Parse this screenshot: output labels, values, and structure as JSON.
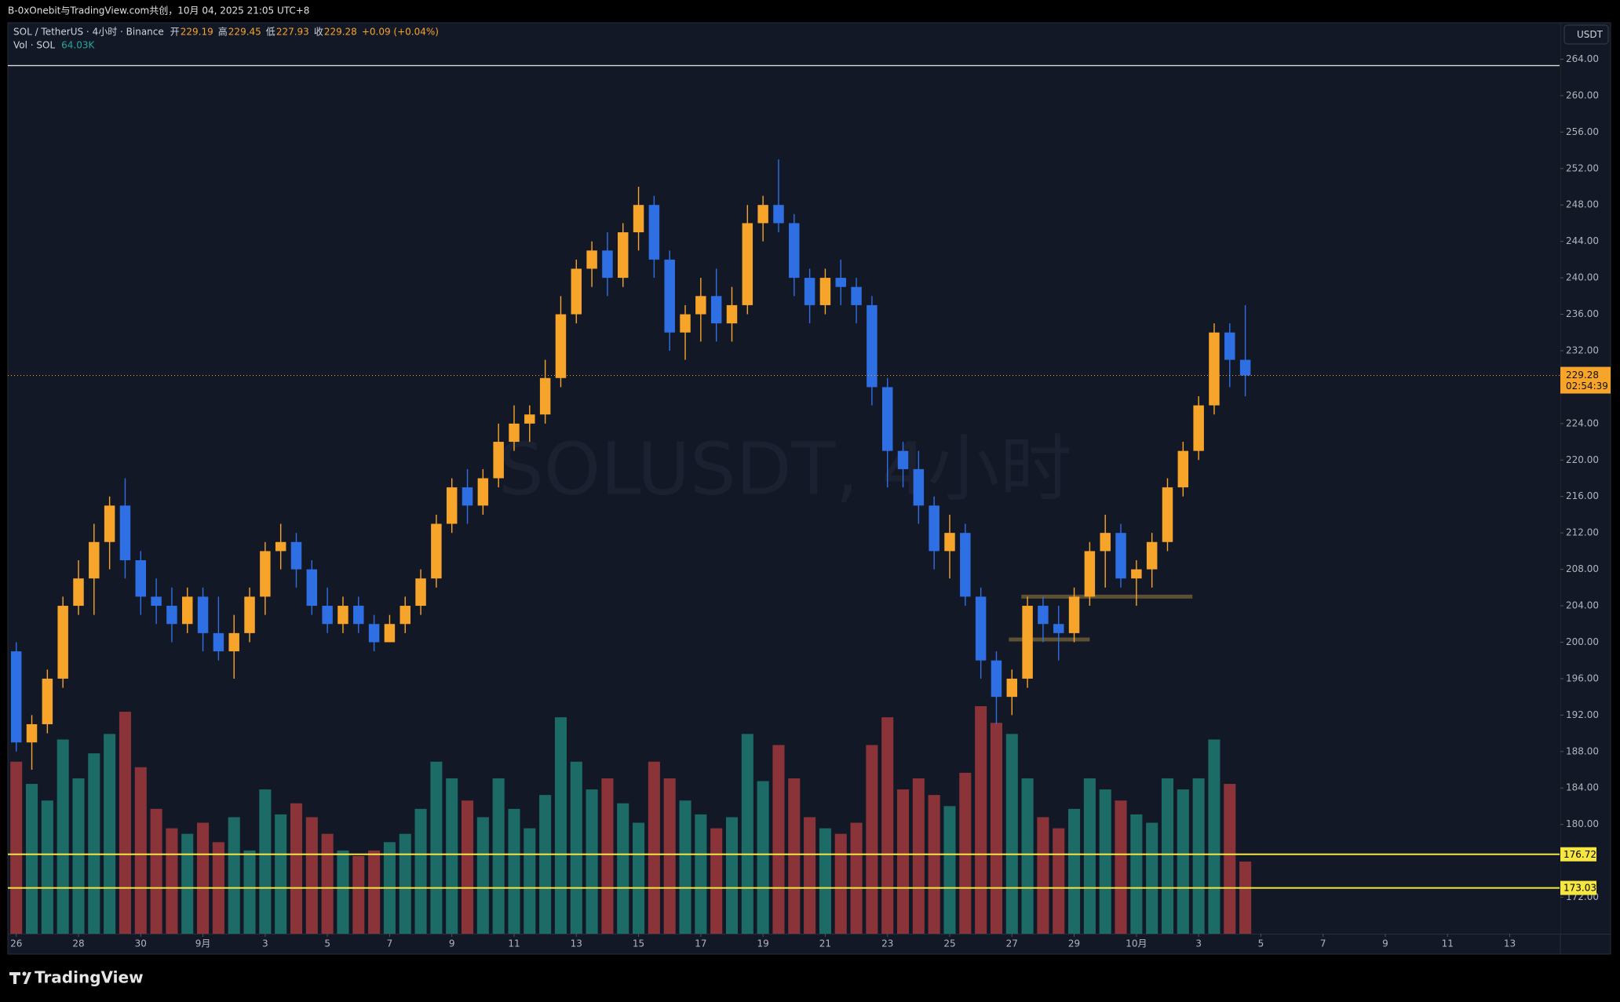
{
  "header": {
    "attribution": "B-0xOnebit与TradingView.com共创，10月 04, 2025 21:05 UTC+8"
  },
  "footer": {
    "brand": "TradingView"
  },
  "chart_data": {
    "type": "candlestick",
    "title": "SOL / TetherUS · 4小时 · Binance",
    "watermark": "SOLUSDT, 4小时",
    "legend": [
      {
        "label": "开",
        "value": 229.19
      },
      {
        "label": "高",
        "value": 229.45
      },
      {
        "label": "低",
        "value": 227.93
      },
      {
        "label": "收",
        "value": 229.28
      }
    ],
    "change": "+0.09 (+0.04%)",
    "volume_legend": {
      "label": "Vol · SOL",
      "value": 64.03,
      "value_label": "64.03K"
    },
    "currency": "USDT",
    "last_price": {
      "value": 229.28,
      "countdown": "02:54:39",
      "color": "#f7a42b"
    },
    "up_color": "#f7a42b",
    "down_color": "#2f6fe4",
    "volume_up_color": "#1d6b67",
    "volume_down_color": "#8a3439",
    "grid": false,
    "xlim": [
      -0.27,
      49.6
    ],
    "ylim": [
      168,
      268
    ],
    "xticks": [
      {
        "value": 0,
        "label": "26"
      },
      {
        "value": 2,
        "label": "28"
      },
      {
        "value": 4,
        "label": "30"
      },
      {
        "value": 6,
        "label": "9月"
      },
      {
        "value": 8,
        "label": "3"
      },
      {
        "value": 10,
        "label": "5"
      },
      {
        "value": 12,
        "label": "7"
      },
      {
        "value": 14,
        "label": "9"
      },
      {
        "value": 16,
        "label": "11"
      },
      {
        "value": 18,
        "label": "13"
      },
      {
        "value": 20,
        "label": "15"
      },
      {
        "value": 22,
        "label": "17"
      },
      {
        "value": 24,
        "label": "19"
      },
      {
        "value": 26,
        "label": "21"
      },
      {
        "value": 28,
        "label": "23"
      },
      {
        "value": 30,
        "label": "25"
      },
      {
        "value": 32,
        "label": "27"
      },
      {
        "value": 34,
        "label": "29"
      },
      {
        "value": 36,
        "label": "10月"
      },
      {
        "value": 38,
        "label": "3"
      },
      {
        "value": 40,
        "label": "5"
      },
      {
        "value": 42,
        "label": "7"
      },
      {
        "value": 44,
        "label": "9"
      },
      {
        "value": 46,
        "label": "11"
      },
      {
        "value": 48,
        "label": "13"
      }
    ],
    "yticks": [
      {
        "value": 264,
        "label": "264.00"
      },
      {
        "value": 260,
        "label": "260.00"
      },
      {
        "value": 256,
        "label": "256.00"
      },
      {
        "value": 252,
        "label": "252.00"
      },
      {
        "value": 248,
        "label": "248.00"
      },
      {
        "value": 244,
        "label": "244.00"
      },
      {
        "value": 240,
        "label": "240.00"
      },
      {
        "value": 236,
        "label": "236.00"
      },
      {
        "value": 232,
        "label": "232.00"
      },
      {
        "value": 228,
        "label": "228.00"
      },
      {
        "value": 224,
        "label": "224.00"
      },
      {
        "value": 220,
        "label": "220.00"
      },
      {
        "value": 216,
        "label": "216.00"
      },
      {
        "value": 212,
        "label": "212.00"
      },
      {
        "value": 208,
        "label": "208.00"
      },
      {
        "value": 204,
        "label": "204.00"
      },
      {
        "value": 200,
        "label": "200.00"
      },
      {
        "value": 196,
        "label": "196.00"
      },
      {
        "value": 192,
        "label": "192.00"
      },
      {
        "value": 188,
        "label": "188.00"
      },
      {
        "value": 184,
        "label": "184.00"
      },
      {
        "value": 180,
        "label": "180.00"
      },
      {
        "value": 172,
        "label": "172.00"
      }
    ],
    "hlines": [
      {
        "value": 176.72,
        "color": "#f5e642"
      },
      {
        "value": 173.03,
        "color": "#f5e642"
      }
    ],
    "top_line": {
      "value": 263.3,
      "color": "#d9d9d9"
    },
    "zones": [
      {
        "x0": 31.9,
        "x1": 34.5,
        "price": 200.3,
        "color": "#5e5133"
      },
      {
        "x0": 32.3,
        "x1": 37.8,
        "price": 205.0,
        "color": "#5e5133"
      }
    ],
    "x": [
      0,
      0.5,
      1,
      1.5,
      2,
      2.5,
      3,
      3.5,
      4,
      4.5,
      5,
      5.5,
      6,
      6.5,
      7,
      7.5,
      8,
      8.5,
      9,
      9.5,
      10,
      10.5,
      11,
      11.5,
      12,
      12.5,
      13,
      13.5,
      14,
      14.5,
      15,
      15.5,
      16,
      16.5,
      17,
      17.5,
      18,
      18.5,
      19,
      19.5,
      20,
      20.5,
      21,
      21.5,
      22,
      22.5,
      23,
      23.5,
      24,
      24.5,
      25,
      25.5,
      26,
      26.5,
      27,
      27.5,
      28,
      28.5,
      29,
      29.5,
      30,
      30.5,
      31,
      31.5,
      32,
      32.5,
      33,
      33.5,
      34,
      34.5,
      35,
      35.5,
      36,
      36.5,
      37,
      37.5,
      38,
      38.5,
      39,
      39.5
    ],
    "open": [
      199,
      189,
      191,
      196,
      204,
      207,
      211,
      215,
      209,
      205,
      204,
      202,
      205,
      201,
      199,
      201,
      205,
      210,
      211,
      208,
      204,
      202,
      204,
      202,
      200,
      202,
      204,
      207,
      213,
      217,
      215,
      218,
      222,
      224,
      225,
      229,
      236,
      241,
      243,
      240,
      245,
      248,
      242,
      234,
      236,
      238,
      235,
      237,
      246,
      248,
      246,
      240,
      237,
      240,
      239,
      237,
      228,
      221,
      219,
      215,
      210,
      212,
      205,
      198,
      194,
      196,
      204,
      202,
      201,
      205,
      210,
      212,
      207,
      208,
      211,
      217,
      221,
      226,
      234,
      231
    ],
    "high": [
      200,
      192,
      197,
      205,
      209,
      213,
      216,
      218,
      210,
      207,
      206,
      206,
      206,
      205,
      203,
      206,
      211,
      213,
      212,
      209,
      206,
      205,
      205,
      203,
      203,
      205,
      208,
      214,
      218,
      219,
      219,
      224,
      226,
      226,
      231,
      238,
      242,
      244,
      245,
      246,
      250,
      249,
      243,
      237,
      240,
      241,
      239,
      248,
      249,
      253,
      247,
      241,
      241,
      242,
      240,
      238,
      229,
      222,
      221,
      216,
      214,
      213,
      206,
      199,
      197,
      205,
      205,
      204,
      206,
      211,
      214,
      213,
      209,
      212,
      218,
      222,
      227,
      235,
      235,
      237
    ],
    "low": [
      188,
      186,
      190,
      195,
      203,
      203,
      208,
      207,
      203,
      202,
      200,
      201,
      199,
      198,
      196,
      200,
      203,
      208,
      206,
      203,
      201,
      201,
      201,
      199,
      200,
      201,
      203,
      206,
      212,
      213,
      214,
      217,
      221,
      222,
      224,
      228,
      235,
      239,
      238,
      239,
      243,
      240,
      232,
      231,
      233,
      233,
      233,
      236,
      244,
      245,
      238,
      235,
      236,
      237,
      235,
      226,
      217,
      217,
      213,
      208,
      207,
      204,
      196,
      191,
      192,
      195,
      200,
      198,
      200,
      204,
      206,
      206,
      204,
      206,
      210,
      216,
      220,
      225,
      228,
      227
    ],
    "close": [
      189,
      191,
      196,
      204,
      207,
      211,
      215,
      209,
      205,
      204,
      202,
      205,
      201,
      199,
      201,
      205,
      210,
      211,
      208,
      204,
      202,
      204,
      202,
      200,
      202,
      204,
      207,
      213,
      217,
      215,
      218,
      222,
      224,
      225,
      229,
      236,
      241,
      243,
      240,
      245,
      248,
      242,
      234,
      236,
      238,
      235,
      237,
      246,
      248,
      246,
      240,
      237,
      240,
      239,
      237,
      228,
      221,
      219,
      215,
      210,
      212,
      205,
      198,
      194,
      196,
      204,
      202,
      201,
      205,
      210,
      212,
      207,
      208,
      211,
      217,
      221,
      226,
      234,
      231,
      229.28
    ],
    "volume": [
      620,
      540,
      480,
      700,
      560,
      650,
      720,
      800,
      600,
      450,
      380,
      360,
      400,
      330,
      420,
      300,
      520,
      430,
      470,
      420,
      360,
      300,
      280,
      300,
      330,
      360,
      450,
      620,
      560,
      480,
      420,
      560,
      450,
      380,
      500,
      780,
      620,
      520,
      560,
      470,
      400,
      620,
      560,
      480,
      430,
      380,
      420,
      720,
      550,
      680,
      560,
      420,
      380,
      360,
      400,
      680,
      780,
      520,
      560,
      500,
      460,
      580,
      820,
      760,
      720,
      560,
      420,
      380,
      450,
      560,
      520,
      480,
      430,
      400,
      560,
      520,
      560,
      700,
      540,
      260
    ]
  }
}
